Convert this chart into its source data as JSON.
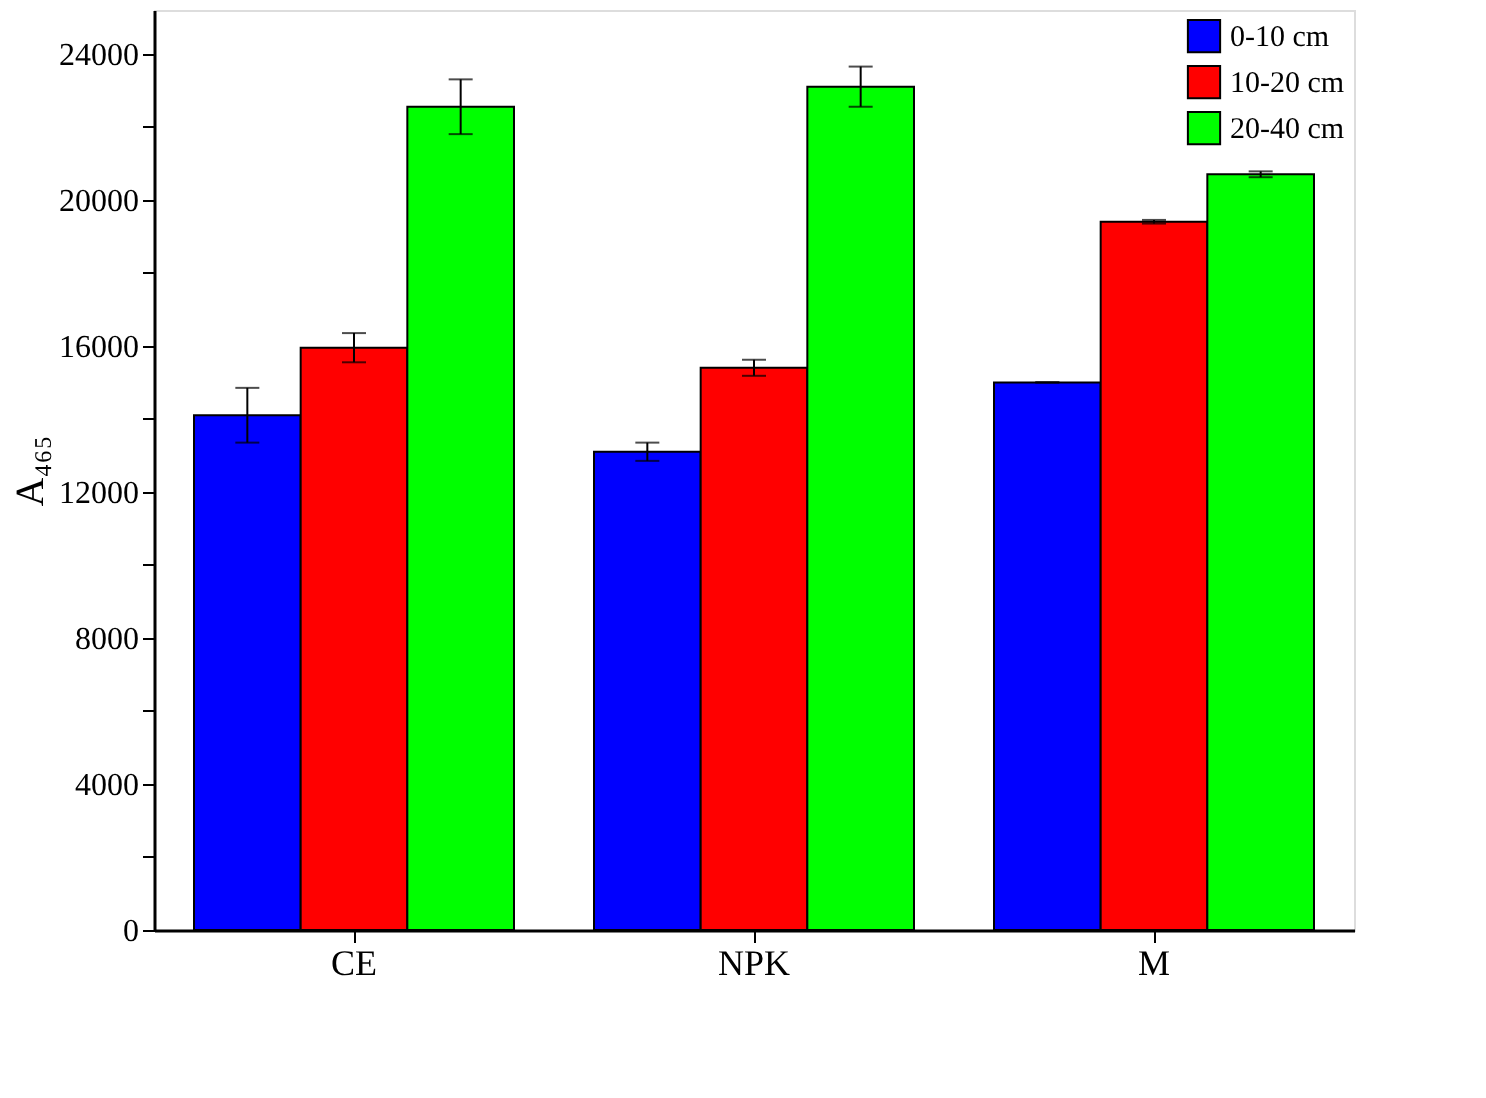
{
  "chart_data": {
    "type": "bar",
    "ylabel": "A₄₆₅",
    "categories": [
      "CE",
      "NPK",
      "M"
    ],
    "series": [
      {
        "name": "0-10 cm",
        "color": "#0000ff",
        "values": [
          14100,
          13100,
          15000
        ],
        "errors": [
          750,
          250,
          0
        ]
      },
      {
        "name": "10-20 cm",
        "color": "#ff0000",
        "values": [
          15950,
          15400,
          19400
        ],
        "errors": [
          400,
          220,
          50
        ]
      },
      {
        "name": "20-40 cm",
        "color": "#00ff00",
        "values": [
          22550,
          23100,
          20700
        ],
        "errors": [
          750,
          550,
          80
        ]
      }
    ],
    "ylim": [
      0,
      25200
    ],
    "yticks": [
      0,
      {
        "value": 2000,
        "label": null
      },
      4000,
      {
        "value": 6000,
        "label": null
      },
      8000,
      {
        "value": 10000,
        "label": null
      },
      12000,
      {
        "value": 14000,
        "label": null
      },
      16000,
      {
        "value": 18000,
        "label": null
      },
      20000,
      {
        "value": 22000,
        "label": null
      },
      24000
    ],
    "grid": false,
    "legend": "top right"
  }
}
